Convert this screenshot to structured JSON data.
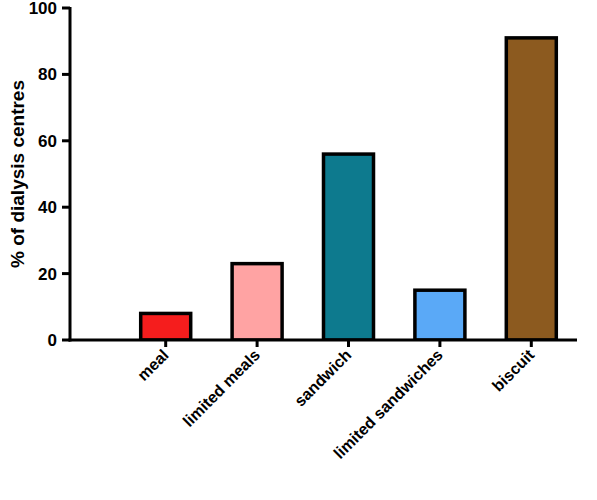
{
  "chart_data": {
    "type": "bar",
    "y_label": "% of dialysis centres",
    "categories": [
      "meal",
      "limited meals",
      "sandwich",
      "limited sandwiches",
      "biscuit"
    ],
    "values": [
      8,
      23,
      56,
      15,
      91
    ],
    "colors": [
      "#f51d1d",
      "#ffa3a3",
      "#0d7a8e",
      "#5aa9f7",
      "#8c5a1f"
    ],
    "ylim": [
      0,
      100
    ],
    "yticks": [
      0,
      20,
      40,
      60,
      80,
      100
    ],
    "grid": false
  }
}
